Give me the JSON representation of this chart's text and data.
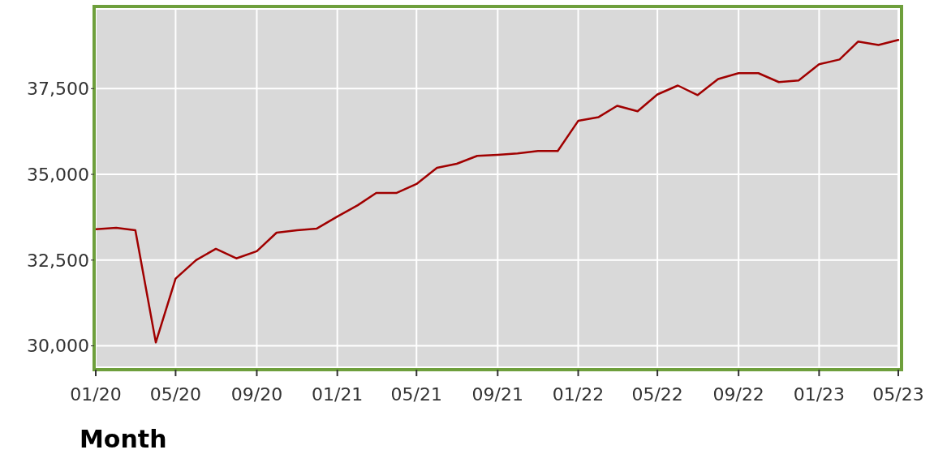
{
  "chart_data": {
    "type": "line",
    "xlabel": "Month",
    "x": [
      "2020-01",
      "2020-02",
      "2020-03",
      "2020-04",
      "2020-05",
      "2020-06",
      "2020-07",
      "2020-08",
      "2020-09",
      "2020-10",
      "2020-11",
      "2020-12",
      "2021-01",
      "2021-02",
      "2021-03",
      "2021-04",
      "2021-05",
      "2021-06",
      "2021-07",
      "2021-08",
      "2021-09",
      "2021-10",
      "2021-11",
      "2021-12",
      "2022-01",
      "2022-02",
      "2022-03",
      "2022-04",
      "2022-05",
      "2022-06",
      "2022-07",
      "2022-08",
      "2022-09",
      "2022-10",
      "2022-11",
      "2022-12",
      "2023-01",
      "2023-02",
      "2023-03",
      "2023-04",
      "2023-05"
    ],
    "series": [
      {
        "color": "#a00000",
        "values": [
          33400,
          33440,
          33370,
          30100,
          31960,
          32500,
          32830,
          32550,
          32760,
          33300,
          33370,
          33420,
          33770,
          34100,
          34460,
          34460,
          34720,
          35190,
          35310,
          35540,
          35570,
          35610,
          35680,
          35680,
          36560,
          36670,
          37000,
          36840,
          37330,
          37590,
          37310,
          37780,
          37950,
          37950,
          37690,
          37740,
          38210,
          38350,
          38870,
          38770,
          38920
        ]
      }
    ],
    "xlim": [
      "2020-01",
      "2023-05"
    ],
    "xticks": [
      {
        "value": "2020-01",
        "label": "01/20"
      },
      {
        "value": "2020-05",
        "label": "05/20"
      },
      {
        "value": "2020-09",
        "label": "09/20"
      },
      {
        "value": "2021-01",
        "label": "01/21"
      },
      {
        "value": "2021-05",
        "label": "05/21"
      },
      {
        "value": "2021-09",
        "label": "09/21"
      },
      {
        "value": "2022-01",
        "label": "01/22"
      },
      {
        "value": "2022-05",
        "label": "05/22"
      },
      {
        "value": "2022-09",
        "label": "09/22"
      },
      {
        "value": "2023-01",
        "label": "01/23"
      },
      {
        "value": "2023-05",
        "label": "05/23"
      }
    ],
    "ylim": [
      29400,
      39800
    ],
    "yticks": [
      {
        "value": 30000,
        "label": "30,000"
      },
      {
        "value": 32500,
        "label": "32,500"
      },
      {
        "value": 35000,
        "label": "35,000"
      },
      {
        "value": 37500,
        "label": "37,500"
      }
    ],
    "grid": true,
    "marker": "none",
    "line_style": "solid"
  }
}
